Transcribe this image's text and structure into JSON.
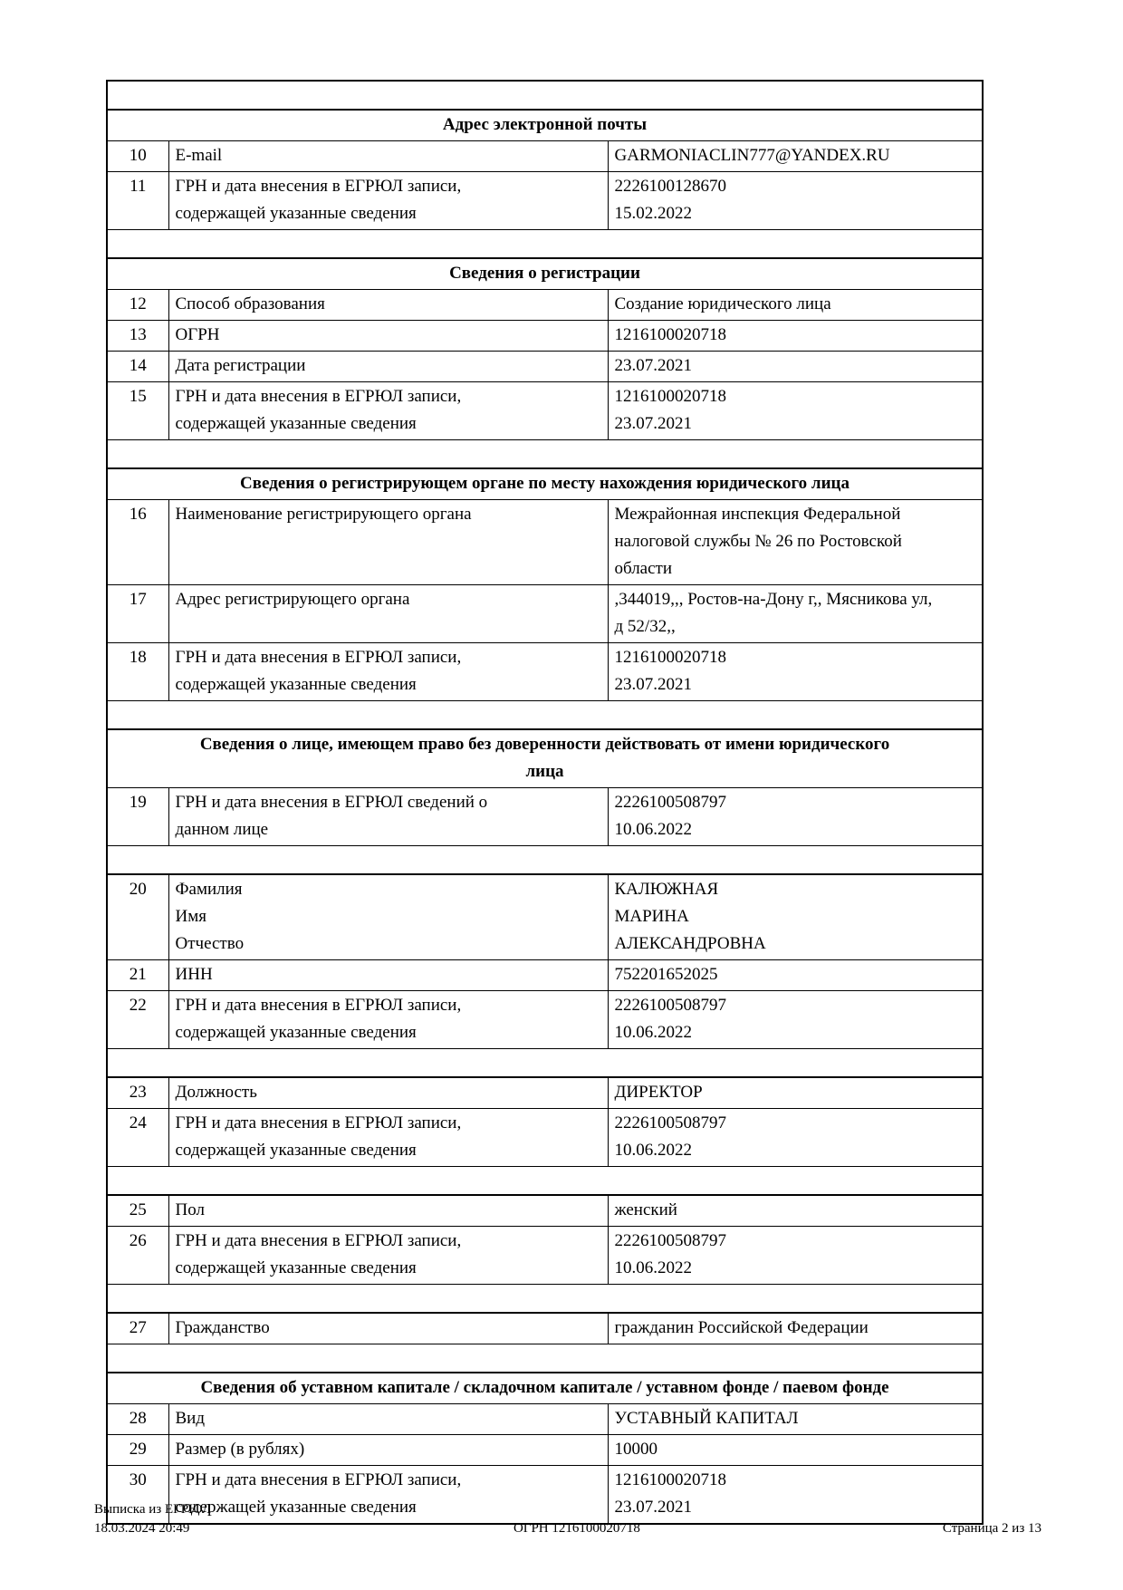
{
  "footer": {
    "left_line1": "Выписка из ЕГРЮЛ",
    "left_line2": "18.03.2024 20:49",
    "center": "ОГРН 1216100020718",
    "right": "Страница 2 из 13"
  },
  "table": {
    "rows": [
      {
        "type": "spacer"
      },
      {
        "type": "section",
        "lines": [
          "Адрес электронной почты"
        ]
      },
      {
        "type": "data",
        "num": "10",
        "label": [
          "E-mail"
        ],
        "value": [
          "GARMONIACLIN777@YANDEX.RU"
        ]
      },
      {
        "type": "data",
        "num": "11",
        "label": [
          "ГРН и дата внесения в ЕГРЮЛ записи,",
          "содержащей указанные сведения"
        ],
        "value": [
          "2226100128670",
          "15.02.2022"
        ]
      },
      {
        "type": "spacer"
      },
      {
        "type": "section",
        "lines": [
          "Сведения о регистрации"
        ]
      },
      {
        "type": "data",
        "num": "12",
        "label": [
          "Способ образования"
        ],
        "value": [
          "Создание юридического лица"
        ]
      },
      {
        "type": "data",
        "num": "13",
        "label": [
          "ОГРН"
        ],
        "value": [
          "1216100020718"
        ]
      },
      {
        "type": "data",
        "num": "14",
        "label": [
          "Дата регистрации"
        ],
        "value": [
          "23.07.2021"
        ]
      },
      {
        "type": "data",
        "num": "15",
        "label": [
          "ГРН и дата внесения в ЕГРЮЛ записи,",
          "содержащей указанные сведения"
        ],
        "value": [
          "1216100020718",
          "23.07.2021"
        ]
      },
      {
        "type": "spacer"
      },
      {
        "type": "section",
        "lines": [
          "Сведения о регистрирующем органе по месту нахождения юридического лица"
        ]
      },
      {
        "type": "data",
        "num": "16",
        "label": [
          "Наименование регистрирующего органа"
        ],
        "value": [
          "Межрайонная инспекция Федеральной",
          "налоговой службы № 26 по Ростовской",
          "области"
        ]
      },
      {
        "type": "data",
        "num": "17",
        "label": [
          "Адрес регистрирующего органа"
        ],
        "value": [
          ",344019,,, Ростов-на-Дону г,, Мясникова ул,",
          "д 52/32,,"
        ]
      },
      {
        "type": "data",
        "num": "18",
        "label": [
          "ГРН и дата внесения в ЕГРЮЛ записи,",
          "содержащей указанные сведения"
        ],
        "value": [
          "1216100020718",
          "23.07.2021"
        ]
      },
      {
        "type": "spacer"
      },
      {
        "type": "section",
        "lines": [
          "Сведения о лице, имеющем право без доверенности действовать от имени юридического",
          "лица"
        ]
      },
      {
        "type": "data",
        "num": "19",
        "label": [
          "ГРН и дата внесения в ЕГРЮЛ сведений о",
          "данном лице"
        ],
        "value": [
          "2226100508797",
          "10.06.2022"
        ]
      },
      {
        "type": "spacer"
      },
      {
        "type": "data",
        "num": "20",
        "label": [
          "Фамилия",
          "Имя",
          "Отчество"
        ],
        "value": [
          "КАЛЮЖНАЯ",
          "МАРИНА",
          "АЛЕКСАНДРОВНА"
        ]
      },
      {
        "type": "data",
        "num": "21",
        "label": [
          "ИНН"
        ],
        "value": [
          "752201652025"
        ]
      },
      {
        "type": "data",
        "num": "22",
        "label": [
          "ГРН и дата внесения в ЕГРЮЛ записи,",
          "содержащей указанные сведения"
        ],
        "value": [
          "2226100508797",
          "10.06.2022"
        ]
      },
      {
        "type": "spacer"
      },
      {
        "type": "data",
        "num": "23",
        "label": [
          "Должность"
        ],
        "value": [
          "ДИРЕКТОР"
        ]
      },
      {
        "type": "data",
        "num": "24",
        "label": [
          "ГРН и дата внесения в ЕГРЮЛ записи,",
          "содержащей указанные сведения"
        ],
        "value": [
          "2226100508797",
          "10.06.2022"
        ]
      },
      {
        "type": "spacer"
      },
      {
        "type": "data",
        "num": "25",
        "label": [
          "Пол"
        ],
        "value": [
          "женский"
        ]
      },
      {
        "type": "data",
        "num": "26",
        "label": [
          "ГРН и дата внесения в ЕГРЮЛ записи,",
          "содержащей указанные сведения"
        ],
        "value": [
          "2226100508797",
          "10.06.2022"
        ]
      },
      {
        "type": "spacer"
      },
      {
        "type": "data",
        "num": "27",
        "label": [
          "Гражданство"
        ],
        "value": [
          "гражданин Российской Федерации"
        ]
      },
      {
        "type": "spacer"
      },
      {
        "type": "section",
        "lines": [
          "Сведения об уставном капитале / складочном капитале / уставном фонде / паевом фонде"
        ]
      },
      {
        "type": "data",
        "num": "28",
        "label": [
          "Вид"
        ],
        "value": [
          "УСТАВНЫЙ КАПИТАЛ"
        ]
      },
      {
        "type": "data",
        "num": "29",
        "label": [
          "Размер (в рублях)"
        ],
        "value": [
          "10000"
        ]
      },
      {
        "type": "data",
        "num": "30",
        "label": [
          "ГРН и дата внесения в ЕГРЮЛ записи,",
          "содержащей указанные сведения"
        ],
        "value": [
          "1216100020718",
          "23.07.2021"
        ]
      }
    ]
  }
}
